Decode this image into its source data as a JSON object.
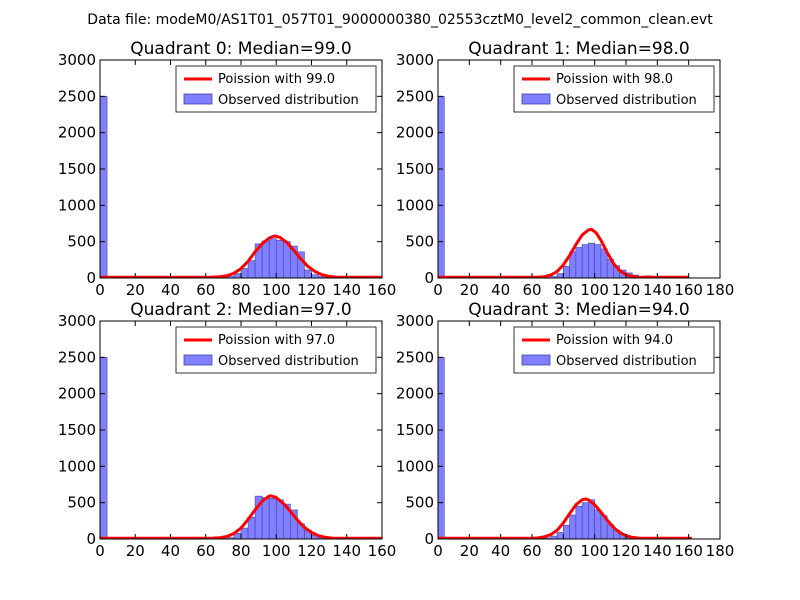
{
  "figure": {
    "suptitle": "Data file: modeM0/AS1T01_057T01_9000000380_02553cztM0_level2_common_clean.evt"
  },
  "style": {
    "bar_fill": "#8080ff",
    "bar_edge": "#4040b0",
    "curve_color": "#ff0000",
    "axis_color": "#000000"
  },
  "chart_data": [
    {
      "type": "bar",
      "title": "Quadrant 0: Median=99.0",
      "xlim": [
        0,
        160
      ],
      "ylim": [
        0,
        3000
      ],
      "xticks": [
        0,
        20,
        40,
        60,
        80,
        100,
        120,
        140,
        160
      ],
      "yticks": [
        0,
        500,
        1000,
        1500,
        2000,
        2500,
        3000
      ],
      "legend_position": "top-right",
      "legend": [
        "Poission with 99.0",
        "Observed distribution"
      ],
      "hist": {
        "name": "Observed distribution",
        "bin_width": 4,
        "bins": [
          [
            0,
            2500
          ],
          [
            68,
            3
          ],
          [
            72,
            20
          ],
          [
            76,
            60
          ],
          [
            80,
            130
          ],
          [
            84,
            240
          ],
          [
            88,
            470
          ],
          [
            92,
            510
          ],
          [
            96,
            540
          ],
          [
            100,
            520
          ],
          [
            104,
            500
          ],
          [
            108,
            440
          ],
          [
            112,
            360
          ],
          [
            116,
            110
          ],
          [
            120,
            45
          ],
          [
            124,
            20
          ],
          [
            128,
            8
          ],
          [
            132,
            3
          ]
        ]
      },
      "curve": {
        "name": "Poission with 99.0",
        "mean": 99.0,
        "x": [
          0,
          60,
          64,
          68,
          72,
          76,
          80,
          84,
          88,
          92,
          96,
          99,
          102,
          106,
          110,
          114,
          118,
          122,
          126,
          130,
          134,
          138,
          145,
          160
        ],
        "y": [
          10,
          10,
          12,
          18,
          30,
          65,
          130,
          230,
          360,
          470,
          550,
          580,
          560,
          490,
          380,
          260,
          160,
          90,
          45,
          22,
          12,
          10,
          10,
          10
        ]
      }
    },
    {
      "type": "bar",
      "title": "Quadrant 1: Median=98.0",
      "xlim": [
        0,
        180
      ],
      "ylim": [
        0,
        3000
      ],
      "xticks": [
        0,
        20,
        40,
        60,
        80,
        100,
        120,
        140,
        160,
        180
      ],
      "yticks": [
        0,
        500,
        1000,
        1500,
        2000,
        2500,
        3000
      ],
      "legend_position": "top-right",
      "legend": [
        "Poission with 98.0",
        "Observed distribution"
      ],
      "hist": {
        "name": "Observed distribution",
        "bin_width": 4,
        "bins": [
          [
            0,
            2500
          ],
          [
            68,
            5
          ],
          [
            72,
            20
          ],
          [
            76,
            60
          ],
          [
            80,
            160
          ],
          [
            84,
            360
          ],
          [
            88,
            420
          ],
          [
            92,
            460
          ],
          [
            96,
            480
          ],
          [
            100,
            460
          ],
          [
            104,
            400
          ],
          [
            108,
            260
          ],
          [
            112,
            170
          ],
          [
            116,
            110
          ],
          [
            120,
            70
          ],
          [
            124,
            40
          ],
          [
            128,
            20
          ],
          [
            132,
            30
          ],
          [
            136,
            10
          ]
        ]
      },
      "curve": {
        "name": "Poission with 98.0",
        "mean": 98.0,
        "x": [
          0,
          60,
          64,
          68,
          72,
          76,
          80,
          84,
          88,
          92,
          96,
          98,
          101,
          104,
          108,
          112,
          116,
          120,
          124,
          128,
          132,
          140,
          160
        ],
        "y": [
          10,
          10,
          12,
          18,
          40,
          90,
          180,
          310,
          460,
          590,
          660,
          670,
          620,
          520,
          350,
          200,
          100,
          45,
          20,
          12,
          10,
          10,
          10
        ]
      }
    },
    {
      "type": "bar",
      "title": "Quadrant 2: Median=97.0",
      "xlim": [
        0,
        160
      ],
      "ylim": [
        0,
        3000
      ],
      "xticks": [
        0,
        20,
        40,
        60,
        80,
        100,
        120,
        140,
        160
      ],
      "yticks": [
        0,
        500,
        1000,
        1500,
        2000,
        2500,
        3000
      ],
      "legend_position": "top-right",
      "legend": [
        "Poission with 97.0",
        "Observed distribution"
      ],
      "hist": {
        "name": "Observed distribution",
        "bin_width": 4,
        "bins": [
          [
            0,
            2500
          ],
          [
            68,
            5
          ],
          [
            72,
            20
          ],
          [
            76,
            80
          ],
          [
            80,
            150
          ],
          [
            84,
            300
          ],
          [
            88,
            590
          ],
          [
            92,
            570
          ],
          [
            96,
            560
          ],
          [
            100,
            540
          ],
          [
            104,
            480
          ],
          [
            108,
            400
          ],
          [
            112,
            210
          ],
          [
            116,
            120
          ],
          [
            120,
            50
          ],
          [
            124,
            20
          ],
          [
            128,
            10
          ],
          [
            132,
            5
          ]
        ]
      },
      "curve": {
        "name": "Poission with 97.0",
        "mean": 97.0,
        "x": [
          0,
          60,
          64,
          68,
          72,
          76,
          80,
          84,
          88,
          92,
          96,
          97,
          100,
          104,
          108,
          112,
          116,
          120,
          124,
          128,
          132,
          138,
          145,
          160
        ],
        "y": [
          10,
          10,
          12,
          18,
          35,
          75,
          150,
          270,
          400,
          520,
          590,
          595,
          570,
          490,
          380,
          260,
          160,
          90,
          45,
          22,
          12,
          10,
          10,
          10
        ]
      }
    },
    {
      "type": "bar",
      "title": "Quadrant 3: Median=94.0",
      "xlim": [
        0,
        180
      ],
      "ylim": [
        0,
        3000
      ],
      "xticks": [
        0,
        20,
        40,
        60,
        80,
        100,
        120,
        140,
        160,
        180
      ],
      "yticks": [
        0,
        500,
        1000,
        1500,
        2000,
        2500,
        3000
      ],
      "legend_position": "top-right",
      "legend": [
        "Poission with 94.0",
        "Observed distribution"
      ],
      "hist": {
        "name": "Observed distribution",
        "bin_width": 4,
        "bins": [
          [
            0,
            2500
          ],
          [
            12,
            15
          ],
          [
            64,
            5
          ],
          [
            68,
            15
          ],
          [
            72,
            40
          ],
          [
            76,
            90
          ],
          [
            80,
            190
          ],
          [
            84,
            330
          ],
          [
            88,
            450
          ],
          [
            92,
            500
          ],
          [
            96,
            540
          ],
          [
            100,
            400
          ],
          [
            104,
            320
          ],
          [
            108,
            200
          ],
          [
            112,
            120
          ],
          [
            116,
            60
          ],
          [
            120,
            25
          ],
          [
            124,
            10
          ],
          [
            128,
            5
          ]
        ]
      },
      "curve": {
        "name": "Poission with 94.0",
        "mean": 94.0,
        "x": [
          0,
          60,
          64,
          68,
          72,
          76,
          80,
          84,
          88,
          92,
          94,
          96,
          100,
          104,
          108,
          112,
          116,
          120,
          124,
          128,
          135,
          145,
          162
        ],
        "y": [
          10,
          10,
          15,
          30,
          60,
          120,
          220,
          350,
          470,
          540,
          550,
          540,
          470,
          370,
          260,
          160,
          90,
          45,
          22,
          12,
          10,
          10,
          10
        ]
      }
    }
  ]
}
